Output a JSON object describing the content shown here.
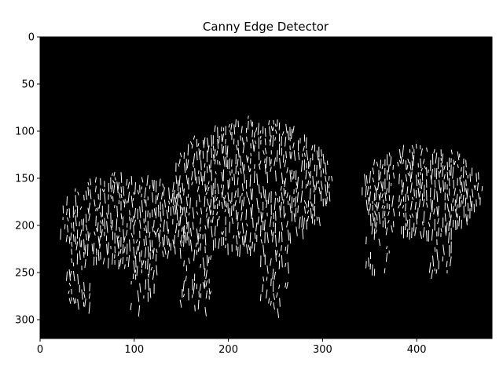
{
  "chart_data": {
    "type": "heatmap",
    "title": "Canny Edge Detector",
    "xlabel": "",
    "ylabel": "",
    "xlim": [
      0,
      480
    ],
    "ylim": [
      320,
      0
    ],
    "xticks": [
      0,
      100,
      200,
      300,
      400
    ],
    "yticks": [
      0,
      50,
      100,
      150,
      200,
      250,
      300
    ],
    "background": "#000000",
    "edge_color": "#ffffff",
    "image_content": "binary edge map of three zebras",
    "regions": [
      {
        "name": "zebra-left",
        "x": [
          20,
          160
        ],
        "y": [
          130,
          285
        ]
      },
      {
        "name": "zebra-middle",
        "x": [
          140,
          310
        ],
        "y": [
          65,
          288
        ]
      },
      {
        "name": "zebra-right",
        "x": [
          340,
          470
        ],
        "y": [
          100,
          250
        ]
      }
    ]
  }
}
